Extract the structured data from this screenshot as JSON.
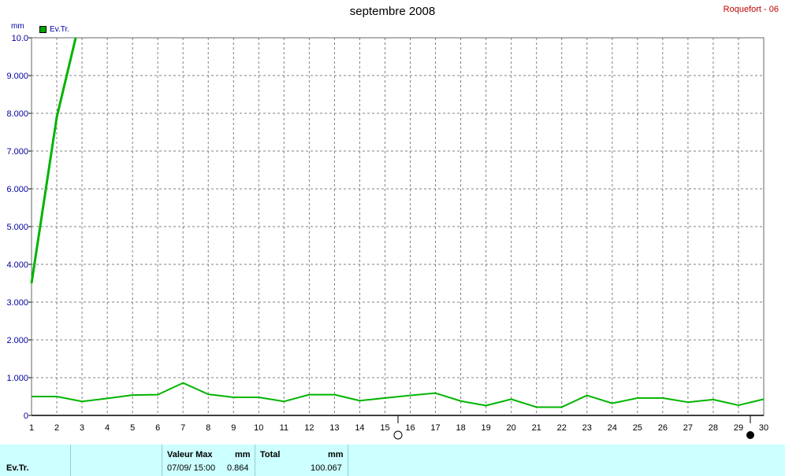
{
  "title": "septembre 2008",
  "station": "Roquefort - 06",
  "unit": "mm",
  "legend": {
    "label": "Ev.Tr.",
    "color": "#00a800"
  },
  "colors": {
    "series": "#00b400",
    "axis": "#000000",
    "grid": "#808080"
  },
  "chart_data": {
    "type": "line",
    "title": "septembre 2008",
    "ylabel": "mm",
    "ylim": [
      0,
      10
    ],
    "y_ticks": [
      "0",
      "1.000",
      "2.000",
      "3.000",
      "4.000",
      "5.000",
      "6.000",
      "7.000",
      "8.000",
      "9.000",
      "10.0"
    ],
    "x": [
      1,
      2,
      3,
      4,
      5,
      6,
      7,
      8,
      9,
      10,
      11,
      12,
      13,
      14,
      15,
      16,
      17,
      18,
      19,
      20,
      21,
      22,
      23,
      24,
      25,
      26,
      27,
      28,
      29,
      30
    ],
    "grid": true,
    "series": [
      {
        "name": "Ev.Tr.",
        "style": "thick",
        "points": [
          [
            1,
            3.5
          ],
          [
            2,
            7.9
          ],
          [
            2.75,
            10.0
          ]
        ]
      },
      {
        "name": "Ev.Tr.",
        "style": "normal",
        "points": [
          [
            1,
            0.5
          ],
          [
            2,
            0.5
          ],
          [
            3,
            0.37
          ],
          [
            4,
            0.45
          ],
          [
            5,
            0.54
          ],
          [
            6,
            0.55
          ],
          [
            7,
            0.86
          ],
          [
            8,
            0.56
          ],
          [
            9,
            0.48
          ],
          [
            10,
            0.48
          ],
          [
            11,
            0.37
          ],
          [
            12,
            0.55
          ],
          [
            13,
            0.55
          ],
          [
            14,
            0.39
          ],
          [
            15,
            0.46
          ],
          [
            16,
            0.53
          ],
          [
            17,
            0.59
          ],
          [
            18,
            0.38
          ],
          [
            19,
            0.26
          ],
          [
            20,
            0.43
          ],
          [
            21,
            0.22
          ],
          [
            22,
            0.22
          ],
          [
            23,
            0.53
          ],
          [
            24,
            0.32
          ],
          [
            25,
            0.46
          ],
          [
            26,
            0.46
          ],
          [
            27,
            0.35
          ],
          [
            28,
            0.42
          ],
          [
            29,
            0.27
          ],
          [
            30,
            0.43
          ]
        ]
      }
    ]
  },
  "panel": {
    "series_name": "Ev.Tr.",
    "max_label": "Valeur Max",
    "max_unit": "mm",
    "max_date": "07/09/  15:00",
    "max_value": "0.864",
    "total_label": "Total",
    "total_unit": "mm",
    "total_value": "100.067"
  }
}
